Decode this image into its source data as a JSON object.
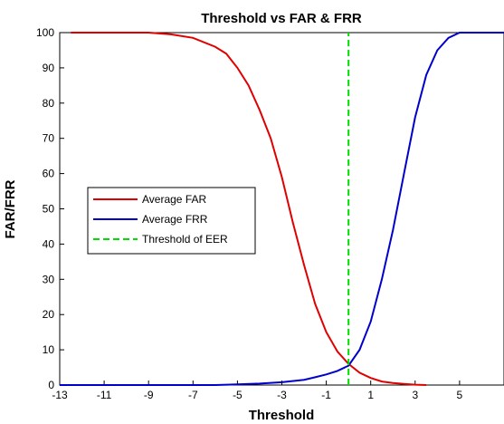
{
  "chart_data": {
    "type": "line",
    "title": "Threshold vs FAR & FRR",
    "xlabel": "Threshold",
    "ylabel": "FAR/FRR",
    "xlim": [
      -13,
      7
    ],
    "ylim": [
      0,
      100
    ],
    "xticks": [
      -13,
      -11,
      -9,
      -7,
      -5,
      -3,
      -1,
      1,
      3,
      5
    ],
    "yticks": [
      0,
      10,
      20,
      30,
      40,
      50,
      60,
      70,
      80,
      90,
      100
    ],
    "grid": false,
    "legend_position": "middle-left",
    "series": [
      {
        "name": "Average FAR",
        "color": "#e00000",
        "style": "solid",
        "x": [
          -12.5,
          -11,
          -10,
          -9,
          -8,
          -7,
          -6,
          -5.5,
          -5,
          -4.5,
          -4,
          -3.5,
          -3,
          -2.5,
          -2,
          -1.5,
          -1,
          -0.5,
          0,
          0.5,
          1,
          1.5,
          2,
          2.5,
          3,
          3.5
        ],
        "y": [
          100,
          100,
          100,
          100,
          99.5,
          98.5,
          96,
          94,
          90,
          85,
          78,
          70,
          59,
          46,
          34,
          23,
          15,
          9.5,
          6,
          3.5,
          2,
          1,
          0.6,
          0.3,
          0.1,
          0
        ]
      },
      {
        "name": "Average FRR",
        "color": "#0000cc",
        "style": "solid",
        "x": [
          -13,
          -6,
          -5,
          -4,
          -3,
          -2,
          -1.5,
          -1,
          -0.5,
          0,
          0.5,
          1,
          1.5,
          2,
          2.5,
          3,
          3.5,
          4,
          4.5,
          5,
          6,
          7
        ],
        "y": [
          0,
          0,
          0.2,
          0.4,
          0.8,
          1.5,
          2.2,
          3,
          4,
          5.5,
          10,
          18,
          30,
          44,
          60,
          76,
          88,
          95,
          98.5,
          100,
          100,
          100
        ]
      },
      {
        "name": "Threshold of EER",
        "color": "#00dd00",
        "style": "dashed",
        "x": [
          0,
          0
        ],
        "y": [
          0,
          100
        ]
      }
    ]
  }
}
